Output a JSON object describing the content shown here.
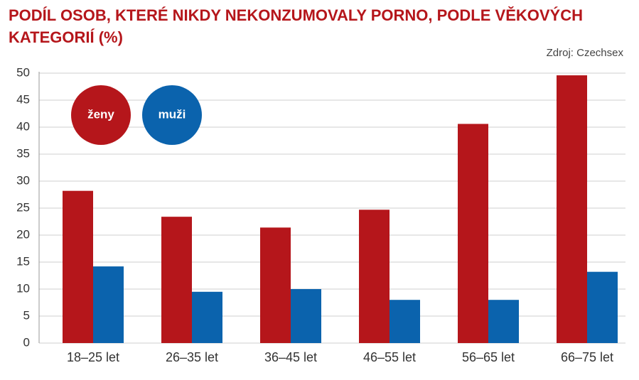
{
  "chart_data": {
    "type": "bar",
    "title": "PODÍL OSOB, KTERÉ NIKDY NEKONZUMOVALY PORNO, PODLE VĚKOVÝCH KATEGORIÍ (%)",
    "source": "Zdroj: Czechsex",
    "categories": [
      "18–25 let",
      "26–35 let",
      "36–45 let",
      "46–55 let",
      "56–65 let",
      "66–75 let"
    ],
    "series": [
      {
        "name": "ženy",
        "color": "#b5161b",
        "values": [
          28.2,
          23.4,
          21.4,
          24.7,
          40.6,
          49.6
        ]
      },
      {
        "name": "muži",
        "color": "#0b63ad",
        "values": [
          14.2,
          9.5,
          10.0,
          8.0,
          8.0,
          13.2
        ]
      }
    ],
    "ylim": [
      0,
      50
    ],
    "yticks": [
      0,
      5,
      10,
      15,
      20,
      25,
      30,
      35,
      40,
      45,
      50
    ],
    "grid": true
  }
}
